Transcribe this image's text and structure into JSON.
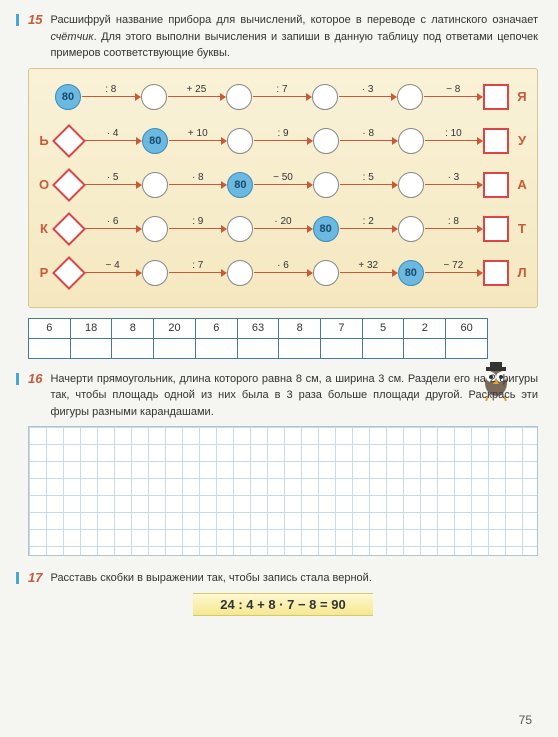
{
  "task15": {
    "num": "15",
    "text_a": "Расшифруй название прибора для вычислений, которое в переводе с латинского означает ",
    "text_em": "счётчик",
    "text_b": ". Для этого выполни вычисления и запиши в данную таблицу под ответами цепочек примеров соответствующие буквы."
  },
  "chains": [
    {
      "left": "",
      "start": {
        "val": "80",
        "blue": true,
        "shape": "circle"
      },
      "ops": [
        ": 8",
        "+ 25",
        ": 7",
        "· 3",
        "− 8"
      ],
      "blueIdx": 0,
      "right": "Я"
    },
    {
      "left": "Ь",
      "start": {
        "val": "",
        "blue": false,
        "shape": "diamond"
      },
      "ops": [
        "· 4",
        "+ 10",
        ": 9",
        "· 8",
        ": 10"
      ],
      "blueIdx": 1,
      "right": "У",
      "blueVal": "80"
    },
    {
      "left": "О",
      "start": {
        "val": "",
        "blue": false,
        "shape": "diamond"
      },
      "ops": [
        "· 5",
        "· 8",
        "− 50",
        ": 5",
        "· 3"
      ],
      "blueIdx": 2,
      "right": "А",
      "blueVal": "80"
    },
    {
      "left": "К",
      "start": {
        "val": "",
        "blue": false,
        "shape": "diamond"
      },
      "ops": [
        "· 6",
        ": 9",
        "· 20",
        ": 2",
        ": 8"
      ],
      "blueIdx": 3,
      "right": "Т",
      "blueVal": "80"
    },
    {
      "left": "Р",
      "start": {
        "val": "",
        "blue": false,
        "shape": "diamond"
      },
      "ops": [
        "− 4",
        ": 7",
        "· 6",
        "+ 32",
        "− 72"
      ],
      "blueIdx": 4,
      "right": "Л",
      "blueVal": "80"
    }
  ],
  "answers": [
    "6",
    "18",
    "8",
    "20",
    "6",
    "63",
    "8",
    "7",
    "5",
    "2",
    "60"
  ],
  "task16": {
    "num": "16",
    "text": "Начерти прямоугольник, длина которого равна 8 см, а ширина 3 см. Раздели его на 2 фигуры так, чтобы площадь одной из них была в 3 раза больше площади другой. Раскрась эти фигуры разными карандашами."
  },
  "task17": {
    "num": "17",
    "text": "Расставь скобки в выражении так, чтобы запись стала верной.",
    "expr": "24 : 4 + 8 · 7 − 8 = 90"
  },
  "page": "75"
}
